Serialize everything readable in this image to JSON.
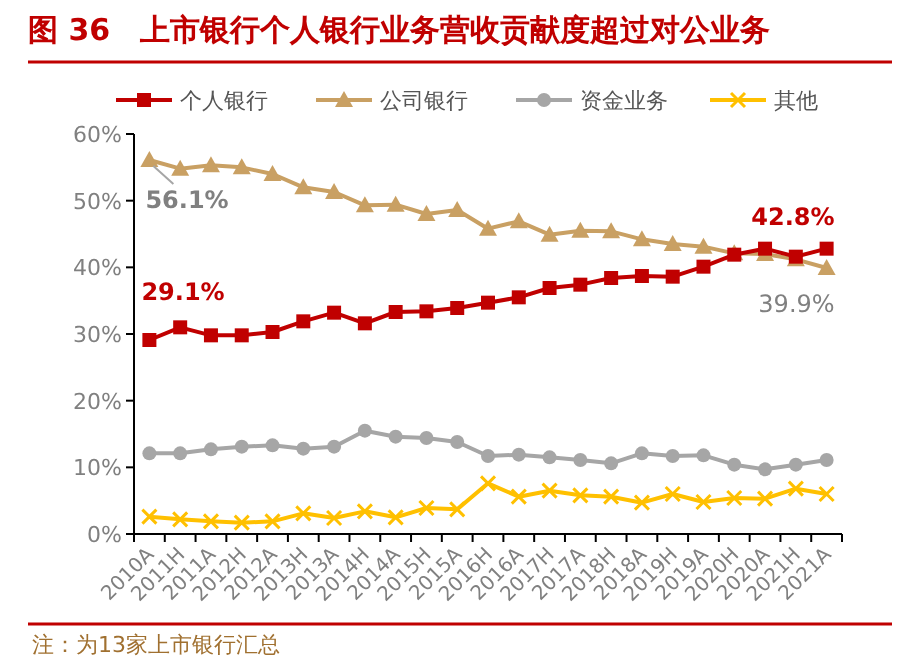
{
  "chart_data": {
    "type": "line",
    "title": "图 36　上市银行个人银行业务营收贡献度超过对公业务",
    "categories": [
      "2010A",
      "2011H",
      "2011A",
      "2012H",
      "2012A",
      "2013H",
      "2013A",
      "2014H",
      "2014A",
      "2015H",
      "2015A",
      "2016H",
      "2016A",
      "2017H",
      "2017A",
      "2018H",
      "2018A",
      "2019H",
      "2019A",
      "2020H",
      "2020A",
      "2021H",
      "2021A"
    ],
    "series": [
      {
        "name": "个人银行",
        "color": "#c00000",
        "marker": "square",
        "values": [
          29.1,
          31.0,
          29.8,
          29.8,
          30.3,
          31.9,
          33.2,
          31.6,
          33.3,
          33.4,
          33.9,
          34.7,
          35.5,
          36.9,
          37.4,
          38.4,
          38.7,
          38.6,
          40.1,
          41.9,
          42.8,
          41.6,
          42.8
        ],
        "value_labels": [
          "29.1%",
          null,
          null,
          null,
          null,
          null,
          null,
          null,
          null,
          null,
          null,
          null,
          null,
          null,
          null,
          null,
          null,
          null,
          null,
          null,
          null,
          null,
          "42.8%"
        ]
      },
      {
        "name": "公司银行",
        "color": "#c9a063",
        "marker": "triangle",
        "values": [
          56.1,
          54.8,
          55.3,
          55.0,
          54.0,
          52.0,
          51.3,
          49.3,
          49.4,
          48.0,
          48.6,
          45.8,
          46.9,
          44.9,
          45.5,
          45.4,
          44.2,
          43.5,
          43.1,
          42.1,
          42.0,
          41.2,
          39.9
        ],
        "value_labels": [
          "56.1%",
          null,
          null,
          null,
          null,
          null,
          null,
          null,
          null,
          null,
          null,
          null,
          null,
          null,
          null,
          null,
          null,
          null,
          null,
          null,
          null,
          null,
          "39.9%"
        ]
      },
      {
        "name": "资金业务",
        "color": "#a6a6a6",
        "marker": "circle",
        "values": [
          12.1,
          12.1,
          12.7,
          13.1,
          13.3,
          12.8,
          13.1,
          15.5,
          14.6,
          14.4,
          13.8,
          11.7,
          11.9,
          11.5,
          11.1,
          10.6,
          12.1,
          11.7,
          11.8,
          10.4,
          9.7,
          10.4,
          11.1
        ]
      },
      {
        "name": "其他",
        "color": "#ffc000",
        "marker": "cross",
        "values": [
          2.6,
          2.2,
          1.9,
          1.7,
          1.9,
          3.1,
          2.4,
          3.4,
          2.5,
          3.9,
          3.7,
          7.6,
          5.6,
          6.5,
          5.8,
          5.6,
          4.7,
          6.0,
          4.8,
          5.4,
          5.3,
          6.8,
          6.0
        ]
      }
    ],
    "ylim": [
      0,
      60
    ],
    "yticks": [
      {
        "value": 0,
        "label": "0%"
      },
      {
        "value": 10,
        "label": "10%"
      },
      {
        "value": 20,
        "label": "20%"
      },
      {
        "value": 30,
        "label": "30%"
      },
      {
        "value": 40,
        "label": "40%"
      },
      {
        "value": 50,
        "label": "50%"
      },
      {
        "value": 60,
        "label": "60%"
      }
    ],
    "legend": "top",
    "grid": false,
    "annotations": [
      "注：为13家上市银行汇总"
    ]
  }
}
